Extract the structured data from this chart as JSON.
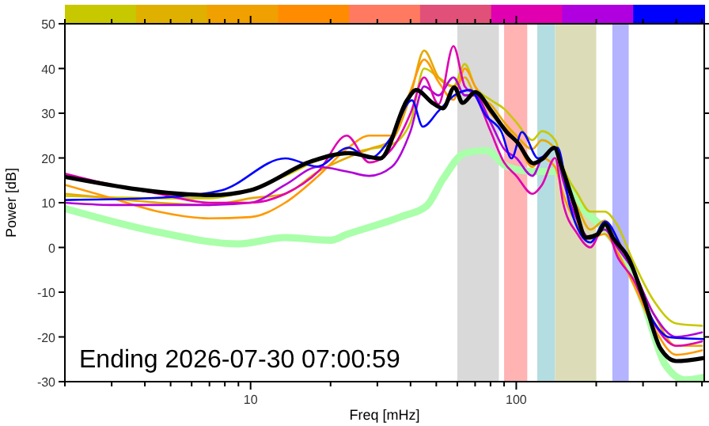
{
  "chart_data": {
    "type": "line",
    "xlabel": "Freq [mHz]",
    "ylabel": "Power [dB]",
    "log": "x",
    "xlim": [
      2,
      510
    ],
    "ylim": [
      -30,
      50
    ],
    "xticks": [
      {
        "value": 2,
        "label": null
      },
      {
        "value": 3,
        "label": null
      },
      {
        "value": 4,
        "label": null
      },
      {
        "value": 5,
        "label": null
      },
      {
        "value": 6,
        "label": null
      },
      {
        "value": 7,
        "label": null
      },
      {
        "value": 8,
        "label": null
      },
      {
        "value": 9,
        "label": null
      },
      10,
      {
        "value": 20,
        "label": null
      },
      {
        "value": 30,
        "label": null
      },
      {
        "value": 40,
        "label": null
      },
      {
        "value": 50,
        "label": null
      },
      {
        "value": 60,
        "label": null
      },
      {
        "value": 70,
        "label": null
      },
      {
        "value": 80,
        "label": null
      },
      {
        "value": 90,
        "label": null
      },
      100,
      {
        "value": 200,
        "label": null
      },
      {
        "value": 300,
        "label": null
      },
      {
        "value": 400,
        "label": null
      },
      {
        "value": 500,
        "label": null
      }
    ],
    "yticks": [
      -30,
      -20,
      -10,
      0,
      10,
      20,
      30,
      40,
      50
    ],
    "x": [
      2,
      3,
      4.5,
      7,
      10,
      13.5,
      18,
      23,
      28,
      34,
      40,
      45,
      51,
      58,
      64,
      70,
      80,
      90,
      100,
      115,
      125,
      140,
      150,
      170,
      190,
      215,
      240,
      275,
      330,
      400,
      500
    ],
    "bands": [
      {
        "axis": "x",
        "from": 60,
        "to": 86,
        "color": "#d9d9d9"
      },
      {
        "axis": "x",
        "from": 90,
        "to": 110,
        "color": "#ffb3b3"
      },
      {
        "axis": "x",
        "from": 120,
        "to": 140,
        "color": "#b3dde0"
      },
      {
        "axis": "x",
        "from": 140,
        "to": 200,
        "color": "#dcdcb8"
      },
      {
        "axis": "x",
        "from": 230,
        "to": 265,
        "color": "#b3b3ff"
      }
    ],
    "series": [
      {
        "color": "#aaffaa",
        "x": [
          2,
          4.5,
          9,
          13.5,
          20,
          23,
          37,
          46,
          53,
          64,
          77,
          92,
          116,
          144,
          174,
          209,
          250,
          304,
          363,
          433,
          510
        ],
        "values": [
          8.7,
          3.4,
          0.8,
          2.2,
          1.6,
          2.9,
          6.9,
          9.3,
          15.3,
          21.1,
          21.7,
          18.1,
          17,
          17,
          9.3,
          4.7,
          -1.3,
          -13,
          -26.1,
          -29.6,
          -29
        ]
      },
      {
        "color": "#c8c800",
        "values": [
          11.5,
          11.2,
          11,
          11,
          13,
          16,
          19.5,
          21,
          22,
          23,
          28,
          40,
          38,
          36,
          41,
          36,
          33,
          31,
          28,
          24,
          26,
          24,
          18,
          12,
          8,
          8,
          5,
          -3,
          -12,
          -17,
          -17.5
        ]
      },
      {
        "color": "#e6a800",
        "values": [
          12,
          11,
          10,
          9.5,
          11,
          12,
          17,
          20,
          22,
          24,
          34,
          44,
          38,
          36,
          38,
          34,
          32,
          28,
          25,
          22,
          24,
          22,
          16,
          9,
          4,
          6,
          2,
          -5,
          -15,
          -22,
          -22
        ]
      },
      {
        "color": "#ff9900",
        "values": [
          14,
          11,
          8,
          6.5,
          6.8,
          10,
          16,
          22,
          25,
          25,
          35,
          42,
          37,
          33,
          40,
          36,
          30,
          27,
          24,
          18,
          20,
          18,
          12,
          5,
          2,
          3,
          -1,
          -8,
          -18,
          -24,
          -23
        ]
      },
      {
        "color": "#b000d8",
        "values": [
          10,
          9.5,
          9.5,
          9.5,
          10,
          14,
          18,
          17,
          16,
          18,
          26,
          36,
          34,
          38,
          34,
          34,
          28,
          22,
          20,
          16,
          20,
          22,
          15,
          6,
          2,
          4,
          0,
          -5,
          -15,
          -20,
          -19
        ]
      },
      {
        "color": "#e000b0",
        "values": [
          16.5,
          14,
          12,
          10,
          10,
          12,
          17,
          25,
          19,
          22,
          30,
          38,
          32,
          45,
          36,
          34,
          26,
          19,
          16,
          12,
          14,
          20,
          10,
          3,
          0,
          5,
          -2,
          -7,
          -17,
          -22,
          -21
        ]
      },
      {
        "color": "#0000ff",
        "x": [
          2,
          4.5,
          7.8,
          13.5,
          17.8,
          23.4,
          28,
          33.8,
          40.5,
          44.5,
          51,
          58.5,
          67,
          77,
          88,
          96,
          105,
          121,
          143,
          159,
          190,
          216,
          250,
          275,
          329,
          378,
          510
        ],
        "values": [
          10.6,
          11.1,
          12.8,
          19.9,
          18.1,
          22.3,
          19.9,
          24.6,
          32.9,
          27,
          30.5,
          34,
          35.2,
          29.4,
          25.8,
          19.9,
          25.8,
          19.9,
          22.3,
          9.3,
          1.1,
          5.8,
          -0.2,
          -5,
          -16.6,
          -20.1,
          -20.5
        ]
      },
      {
        "color": "#000000",
        "x": [
          2,
          7.1,
          10,
          17,
          23.4,
          30.8,
          38.8,
          42,
          48.4,
          53,
          58.5,
          62.8,
          70,
          80.5,
          92,
          101,
          116,
          126,
          139,
          148,
          166,
          183,
          202,
          216,
          231,
          265,
          304,
          349,
          400,
          510
        ],
        "values": [
          15.8,
          11.7,
          12.8,
          19.3,
          21.1,
          19.9,
          32.9,
          35.2,
          32.3,
          31.1,
          35.8,
          32.3,
          34.7,
          30.5,
          25.8,
          23.5,
          18.8,
          19.9,
          22.3,
          18.1,
          9.3,
          2.2,
          2.9,
          5.2,
          2.2,
          -2.5,
          -12,
          -22.6,
          -25.4,
          -24.7
        ]
      }
    ],
    "annotations": [
      "Ending 2026-07-30 07:00:59"
    ]
  }
}
